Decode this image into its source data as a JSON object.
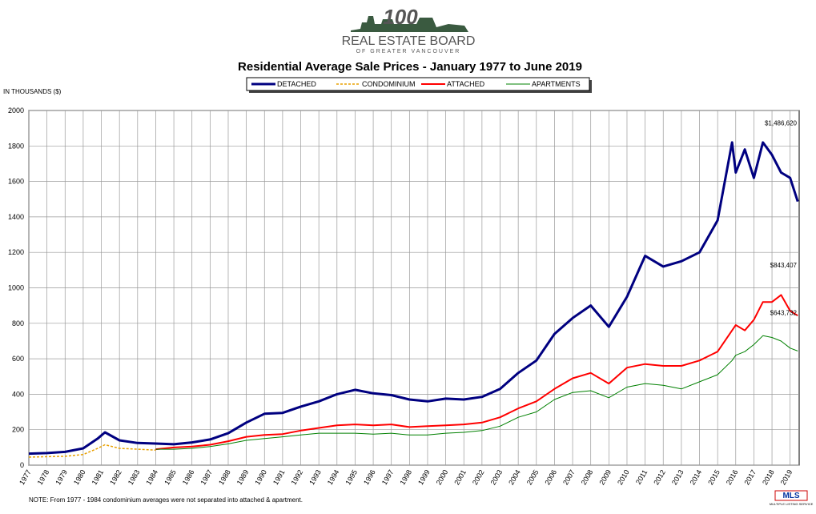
{
  "header": {
    "anniversary": "100",
    "org": "REAL ESTATE BOARD",
    "org_sub": "OF GREATER VANCOUVER"
  },
  "chart_data": {
    "type": "line",
    "title": "Residential Average Sale Prices  -  January 1977 to June 2019",
    "y_label": "IN THOUSANDS ($)",
    "note": "NOTE:  From 1977 - 1984 condominium averages were not separated into attached & apartment.",
    "x": [
      1977,
      1978,
      1979,
      1980,
      1980.8,
      1981.2,
      1982,
      1983,
      1984,
      1985,
      1986,
      1987,
      1988,
      1989,
      1990,
      1991,
      1992,
      1993,
      1994,
      1995,
      1996,
      1997,
      1998,
      1999,
      2000,
      2001,
      2002,
      2003,
      2004,
      2005,
      2006,
      2007,
      2008,
      2009,
      2010,
      2011,
      2012,
      2013,
      2014,
      2015,
      2015.8,
      2016,
      2016.5,
      2017,
      2017.5,
      2018,
      2018.5,
      2019,
      2019.42
    ],
    "series": [
      {
        "name": "DETACHED",
        "color": "#000080",
        "width": 3,
        "dashed": false,
        "end_label": "$1,486,620",
        "values": [
          65,
          68,
          75,
          95,
          150,
          185,
          140,
          125,
          122,
          118,
          128,
          145,
          180,
          240,
          290,
          295,
          330,
          360,
          400,
          425,
          405,
          395,
          370,
          360,
          375,
          370,
          385,
          430,
          520,
          590,
          740,
          830,
          900,
          780,
          950,
          1180,
          1120,
          1150,
          1200,
          1380,
          1820,
          1650,
          1780,
          1620,
          1820,
          1750,
          1650,
          1620,
          1486.62
        ]
      },
      {
        "name": "CONDOMINIUM",
        "color": "#e8a000",
        "width": 1.5,
        "dashed": true,
        "values": [
          45,
          48,
          50,
          60,
          95,
          115,
          95,
          90,
          85,
          null,
          null,
          null,
          null,
          null,
          null,
          null,
          null,
          null,
          null,
          null,
          null,
          null,
          null,
          null,
          null,
          null,
          null,
          null,
          null,
          null,
          null,
          null,
          null,
          null,
          null,
          null,
          null,
          null,
          null,
          null,
          null,
          null,
          null,
          null,
          null,
          null,
          null,
          null,
          null
        ]
      },
      {
        "name": "ATTACHED",
        "color": "#ff0000",
        "width": 2,
        "dashed": false,
        "end_label": "$843,407",
        "values": [
          null,
          null,
          null,
          null,
          null,
          null,
          null,
          null,
          90,
          100,
          105,
          115,
          135,
          160,
          170,
          175,
          195,
          210,
          225,
          230,
          225,
          230,
          215,
          220,
          225,
          230,
          240,
          270,
          320,
          360,
          430,
          490,
          520,
          460,
          550,
          570,
          560,
          560,
          590,
          640,
          760,
          790,
          760,
          820,
          920,
          920,
          960,
          870,
          843.407
        ]
      },
      {
        "name": "APARTMENTS",
        "color": "#008000",
        "width": 1,
        "dashed": false,
        "end_label": "$643,732",
        "values": [
          null,
          null,
          null,
          null,
          null,
          null,
          null,
          null,
          90,
          90,
          95,
          105,
          120,
          140,
          150,
          160,
          170,
          180,
          180,
          180,
          175,
          180,
          170,
          170,
          180,
          185,
          195,
          220,
          270,
          300,
          370,
          410,
          420,
          380,
          440,
          460,
          450,
          430,
          470,
          510,
          590,
          620,
          640,
          680,
          730,
          720,
          700,
          660,
          643.732
        ]
      }
    ],
    "xlim": [
      1977,
      2019.5
    ],
    "xticks": [
      1977,
      1978,
      1979,
      1980,
      1981,
      1982,
      1983,
      1984,
      1985,
      1986,
      1987,
      1988,
      1989,
      1990,
      1991,
      1992,
      1993,
      1994,
      1995,
      1996,
      1997,
      1998,
      1999,
      2000,
      2001,
      2002,
      2003,
      2004,
      2005,
      2006,
      2007,
      2008,
      2009,
      2010,
      2011,
      2012,
      2013,
      2014,
      2015,
      2016,
      2017,
      2018,
      2019
    ],
    "ylim": [
      0,
      2000
    ],
    "yticks": [
      0,
      200,
      400,
      600,
      800,
      1000,
      1200,
      1400,
      1600,
      1800,
      2000
    ],
    "grid": true
  },
  "footer": {
    "logo": "MLS",
    "logo_sub": "MULTIPLE LISTING SERVICE"
  }
}
